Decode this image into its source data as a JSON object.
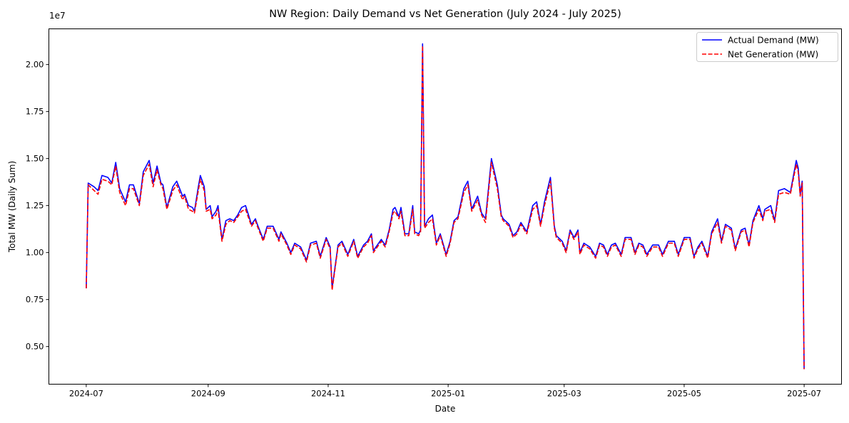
{
  "chart_data": {
    "type": "line",
    "title": "NW Region: Daily Demand vs Net Generation (July 2024 - July 2025)",
    "xlabel": "Date",
    "ylabel": "Total MW (Daily Sum)",
    "y_offset_label": "1e7",
    "y_scale": 10000000,
    "ylim": [
      0.3,
      2.19
    ],
    "x_start_date": "2024-07-01",
    "xlim_days": [
      -19,
      384
    ],
    "x_ticks": [
      {
        "day": 0,
        "label": "2024-07"
      },
      {
        "day": 62,
        "label": "2024-09"
      },
      {
        "day": 123,
        "label": "2024-11"
      },
      {
        "day": 184,
        "label": "2025-01"
      },
      {
        "day": 243,
        "label": "2025-03"
      },
      {
        "day": 304,
        "label": "2025-05"
      },
      {
        "day": 365,
        "label": "2025-07"
      }
    ],
    "y_ticks": [
      {
        "value": 0.5,
        "label": "0.50"
      },
      {
        "value": 0.75,
        "label": "0.75"
      },
      {
        "value": 1.0,
        "label": "1.00"
      },
      {
        "value": 1.25,
        "label": "1.25"
      },
      {
        "value": 1.5,
        "label": "1.50"
      },
      {
        "value": 1.75,
        "label": "1.75"
      },
      {
        "value": 2.0,
        "label": "2.00"
      }
    ],
    "grid": false,
    "legend_position": "top-right",
    "x_days": [
      0,
      1,
      4,
      6,
      8,
      11,
      13,
      15,
      17,
      20,
      22,
      24,
      27,
      29,
      32,
      34,
      36,
      38,
      39,
      41,
      44,
      46,
      49,
      50,
      52,
      54,
      55,
      57,
      58,
      60,
      61,
      63,
      64,
      66,
      67,
      69,
      71,
      73,
      75,
      77,
      79,
      81,
      84,
      86,
      87,
      90,
      92,
      94,
      95,
      98,
      99,
      102,
      104,
      106,
      109,
      112,
      114,
      117,
      119,
      122,
      124,
      125,
      128,
      130,
      133,
      136,
      138,
      141,
      143,
      145,
      146,
      150,
      152,
      154,
      156,
      157,
      159,
      160,
      162,
      164,
      166,
      167,
      169,
      170,
      171,
      172,
      174,
      176,
      178,
      180,
      183,
      185,
      187,
      189,
      192,
      194,
      196,
      199,
      201,
      203,
      206,
      209,
      211,
      212,
      215,
      217,
      219,
      221,
      224,
      227,
      229,
      231,
      233,
      236,
      238,
      239,
      242,
      244,
      246,
      248,
      250,
      251,
      253,
      256,
      259,
      261,
      263,
      265,
      267,
      269,
      272,
      274,
      277,
      279,
      281,
      283,
      285,
      288,
      291,
      293,
      296,
      299,
      301,
      304,
      307,
      309,
      311,
      313,
      316,
      318,
      321,
      323,
      325,
      328,
      330,
      333,
      335,
      337,
      339,
      342,
      344,
      345,
      348,
      350,
      352,
      355,
      358,
      361,
      362,
      363,
      364,
      365
    ],
    "series": [
      {
        "name": "Actual Demand (MW)",
        "color": "#0000ff",
        "dash": "solid",
        "values": [
          0.81,
          1.37,
          1.35,
          1.33,
          1.41,
          1.4,
          1.37,
          1.48,
          1.34,
          1.27,
          1.36,
          1.36,
          1.26,
          1.43,
          1.49,
          1.37,
          1.46,
          1.37,
          1.36,
          1.24,
          1.35,
          1.38,
          1.3,
          1.31,
          1.25,
          1.24,
          1.22,
          1.35,
          1.41,
          1.35,
          1.23,
          1.25,
          1.19,
          1.22,
          1.25,
          1.07,
          1.17,
          1.18,
          1.17,
          1.2,
          1.24,
          1.25,
          1.15,
          1.18,
          1.15,
          1.07,
          1.14,
          1.14,
          1.14,
          1.07,
          1.11,
          1.05,
          1.0,
          1.05,
          1.03,
          0.96,
          1.05,
          1.06,
          0.98,
          1.08,
          1.03,
          0.81,
          1.04,
          1.06,
          0.99,
          1.07,
          0.98,
          1.04,
          1.06,
          1.1,
          1.01,
          1.07,
          1.04,
          1.12,
          1.23,
          1.24,
          1.19,
          1.24,
          1.1,
          1.1,
          1.25,
          1.11,
          1.1,
          1.12,
          2.11,
          1.14,
          1.18,
          1.2,
          1.05,
          1.1,
          0.99,
          1.06,
          1.17,
          1.19,
          1.34,
          1.38,
          1.23,
          1.3,
          1.21,
          1.18,
          1.5,
          1.36,
          1.2,
          1.18,
          1.15,
          1.09,
          1.11,
          1.16,
          1.11,
          1.25,
          1.27,
          1.15,
          1.27,
          1.4,
          1.14,
          1.09,
          1.06,
          1.01,
          1.12,
          1.08,
          1.12,
          1.0,
          1.05,
          1.03,
          0.98,
          1.05,
          1.04,
          0.99,
          1.04,
          1.05,
          0.99,
          1.08,
          1.08,
          1.0,
          1.05,
          1.04,
          0.99,
          1.04,
          1.04,
          0.99,
          1.06,
          1.06,
          0.99,
          1.08,
          1.08,
          0.98,
          1.03,
          1.06,
          0.98,
          1.11,
          1.18,
          1.06,
          1.15,
          1.13,
          1.02,
          1.12,
          1.13,
          1.04,
          1.17,
          1.25,
          1.18,
          1.23,
          1.25,
          1.17,
          1.33,
          1.34,
          1.32,
          1.49,
          1.45,
          1.31,
          1.38,
          0.38
        ]
      },
      {
        "name": "Net Generation (MW)",
        "color": "#ff0000",
        "dash": "dashed",
        "values": [
          0.81,
          1.36,
          1.33,
          1.31,
          1.39,
          1.38,
          1.36,
          1.46,
          1.32,
          1.25,
          1.34,
          1.34,
          1.25,
          1.41,
          1.47,
          1.35,
          1.44,
          1.36,
          1.34,
          1.23,
          1.33,
          1.36,
          1.28,
          1.3,
          1.23,
          1.22,
          1.21,
          1.33,
          1.39,
          1.33,
          1.22,
          1.23,
          1.18,
          1.2,
          1.23,
          1.06,
          1.15,
          1.17,
          1.16,
          1.19,
          1.22,
          1.23,
          1.14,
          1.17,
          1.14,
          1.06,
          1.13,
          1.13,
          1.13,
          1.06,
          1.1,
          1.04,
          0.99,
          1.04,
          1.02,
          0.95,
          1.04,
          1.05,
          0.97,
          1.07,
          1.02,
          0.8,
          1.03,
          1.05,
          0.98,
          1.06,
          0.97,
          1.03,
          1.05,
          1.09,
          1.0,
          1.06,
          1.03,
          1.11,
          1.21,
          1.22,
          1.18,
          1.22,
          1.09,
          1.09,
          1.23,
          1.1,
          1.09,
          1.11,
          2.1,
          1.13,
          1.16,
          1.18,
          1.04,
          1.09,
          0.98,
          1.05,
          1.16,
          1.18,
          1.32,
          1.36,
          1.22,
          1.28,
          1.2,
          1.16,
          1.48,
          1.34,
          1.19,
          1.17,
          1.14,
          1.08,
          1.1,
          1.15,
          1.1,
          1.23,
          1.25,
          1.14,
          1.25,
          1.38,
          1.13,
          1.08,
          1.05,
          1.0,
          1.11,
          1.07,
          1.11,
          0.99,
          1.04,
          1.02,
          0.97,
          1.04,
          1.03,
          0.98,
          1.03,
          1.04,
          0.98,
          1.07,
          1.07,
          0.99,
          1.04,
          1.03,
          0.98,
          1.03,
          1.03,
          0.98,
          1.05,
          1.05,
          0.98,
          1.07,
          1.07,
          0.97,
          1.02,
          1.05,
          0.97,
          1.1,
          1.16,
          1.05,
          1.14,
          1.12,
          1.01,
          1.11,
          1.12,
          1.03,
          1.16,
          1.23,
          1.17,
          1.22,
          1.23,
          1.16,
          1.31,
          1.32,
          1.31,
          1.47,
          1.43,
          1.3,
          1.37,
          0.38
        ]
      }
    ]
  }
}
